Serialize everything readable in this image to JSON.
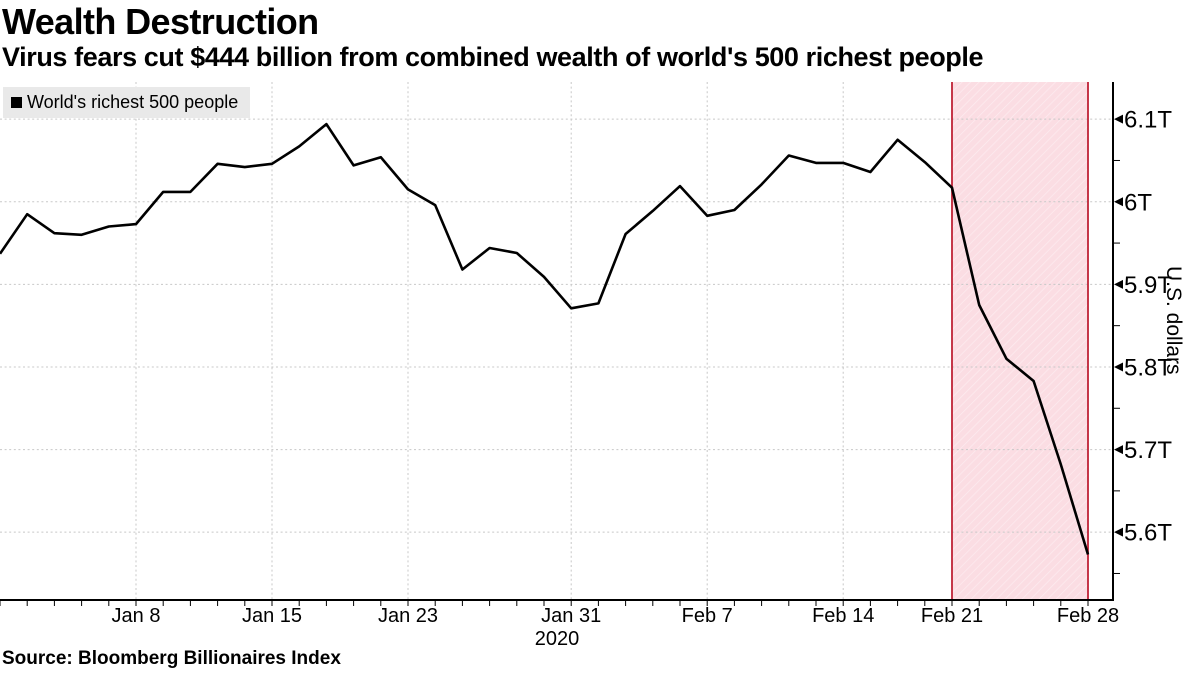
{
  "header": {
    "title": "Wealth Destruction",
    "subtitle": "Virus fears cut $444 billion from combined wealth of world's 500 richest people"
  },
  "legend": {
    "label": "World's richest 500 people",
    "swatch_color": "#000000",
    "background": "#e9e9e9"
  },
  "axis": {
    "y_unit_label": "U.S. dollars",
    "year_label": "2020"
  },
  "source_note": "Source: Bloomberg Billionaires Index",
  "colors": {
    "line": "#000000",
    "grid": "#c8c8c8",
    "band_fill": "#fbdde3",
    "band_border": "#bf2236",
    "axis": "#000000",
    "legend_bg": "#e9e9e9"
  },
  "chart_data": {
    "type": "line",
    "title": "Wealth Destruction",
    "subtitle": "Virus fears cut $444 billion from combined wealth of world's 500 richest people",
    "ylabel": "U.S. dollars",
    "x_year": "2020",
    "unit_suffix": "T",
    "ylim": [
      5.518,
      6.145
    ],
    "grid": "dashed",
    "legend_position": "top-left",
    "series": [
      {
        "name": "World's richest 500 people",
        "color": "#000000",
        "x": [
          "Dec 31",
          "Jan 2",
          "Jan 3",
          "Jan 6",
          "Jan 7",
          "Jan 8",
          "Jan 9",
          "Jan 10",
          "Jan 13",
          "Jan 14",
          "Jan 15",
          "Jan 16",
          "Jan 17",
          "Jan 21",
          "Jan 22",
          "Jan 23",
          "Jan 24",
          "Jan 27",
          "Jan 28",
          "Jan 29",
          "Jan 30",
          "Jan 31",
          "Feb 3",
          "Feb 4",
          "Feb 5",
          "Feb 6",
          "Feb 7",
          "Feb 10",
          "Feb 11",
          "Feb 12",
          "Feb 13",
          "Feb 14",
          "Feb 18",
          "Feb 19",
          "Feb 20",
          "Feb 21",
          "Feb 24",
          "Feb 25",
          "Feb 26",
          "Feb 27",
          "Feb 28"
        ],
        "values": [
          5.937,
          5.985,
          5.962,
          5.96,
          5.97,
          5.973,
          6.012,
          6.012,
          6.046,
          6.042,
          6.046,
          6.067,
          6.094,
          6.044,
          6.054,
          6.015,
          5.996,
          5.918,
          5.944,
          5.938,
          5.909,
          5.871,
          5.877,
          5.961,
          5.989,
          6.019,
          5.983,
          5.99,
          6.021,
          6.056,
          6.047,
          6.047,
          6.036,
          6.075,
          6.048,
          6.017,
          5.875,
          5.81,
          5.783,
          5.682,
          5.573
        ]
      }
    ],
    "y_ticks": [
      {
        "label": "6.1T",
        "value": 6.1
      },
      {
        "label": "6T",
        "value": 6.0
      },
      {
        "label": "5.9T",
        "value": 5.9
      },
      {
        "label": "5.8T",
        "value": 5.8
      },
      {
        "label": "5.7T",
        "value": 5.7
      },
      {
        "label": "5.6T",
        "value": 5.6
      }
    ],
    "x_ticks": [
      {
        "label": "Jan 8",
        "index": 5
      },
      {
        "label": "Jan 15",
        "index": 10
      },
      {
        "label": "Jan 23",
        "index": 15
      },
      {
        "label": "Jan 31",
        "index": 21
      },
      {
        "label": "Feb 7",
        "index": 26
      },
      {
        "label": "Feb 14",
        "index": 31
      },
      {
        "label": "Feb 21",
        "index": 35,
        "band_edge": true
      },
      {
        "label": "Feb 28",
        "index": 40,
        "band_edge": true
      }
    ],
    "shaded_region": {
      "start_date": "Feb 21",
      "end_date": "Feb 28",
      "start_index": 35,
      "end_index": 40,
      "fill": "#fbdde3",
      "border": "#bf2236"
    }
  }
}
